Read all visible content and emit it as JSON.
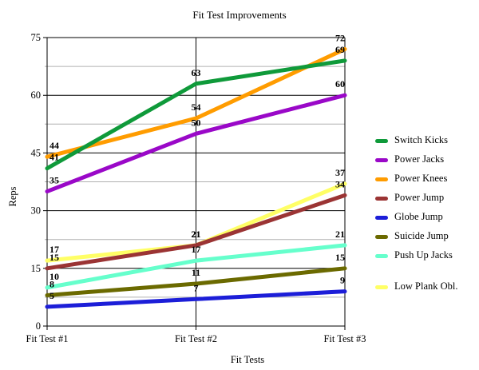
{
  "chart_data": {
    "type": "line",
    "title": "Fit Test Improvements",
    "xlabel": "Fit Tests",
    "ylabel": "Reps",
    "categories": [
      "Fit Test #1",
      "Fit Test #2",
      "Fit Test #3"
    ],
    "ylim": [
      0,
      75
    ],
    "yticks": [
      0,
      15,
      30,
      45,
      60,
      75
    ],
    "minor_gridlines": [
      7.5,
      22.5,
      37.5,
      52.5,
      67.5
    ],
    "grid": true,
    "legend_position": "right",
    "series": [
      {
        "name": "Switch Kicks",
        "color": "#0f9a3a",
        "values": [
          41,
          63,
          69
        ]
      },
      {
        "name": "Power Jacks",
        "color": "#9a08c8",
        "values": [
          35,
          50,
          60
        ]
      },
      {
        "name": "Power Knees",
        "color": "#ff9c00",
        "values": [
          44,
          54,
          72
        ]
      },
      {
        "name": "Power Jump",
        "color": "#9b3434",
        "values": [
          15,
          21,
          34
        ]
      },
      {
        "name": "Globe Jump",
        "color": "#1c1ed8",
        "values": [
          5,
          7,
          9
        ]
      },
      {
        "name": "Suicide Jump",
        "color": "#6b6a00",
        "values": [
          8,
          11,
          15
        ]
      },
      {
        "name": "Push Up Jacks",
        "color": "#66ffcc",
        "values": [
          10,
          17,
          21
        ]
      },
      {
        "name": "Low Plank Obl.",
        "color": "#ffff66",
        "values": [
          17,
          21,
          37
        ]
      }
    ]
  },
  "legend": {
    "items": [
      {
        "label": "Switch Kicks",
        "color": "#0f9a3a"
      },
      {
        "label": "Power Jacks",
        "color": "#9a08c8"
      },
      {
        "label": "Power Knees",
        "color": "#ff9c00"
      },
      {
        "label": "Power Jump",
        "color": "#9b3434"
      },
      {
        "label": "Globe Jump",
        "color": "#1c1ed8"
      },
      {
        "label": "Suicide Jump",
        "color": "#6b6a00"
      },
      {
        "label": "Push Up Jacks",
        "color": "#66ffcc"
      },
      {
        "label": "Low Plank Obl.",
        "color": "#ffff66"
      }
    ]
  }
}
